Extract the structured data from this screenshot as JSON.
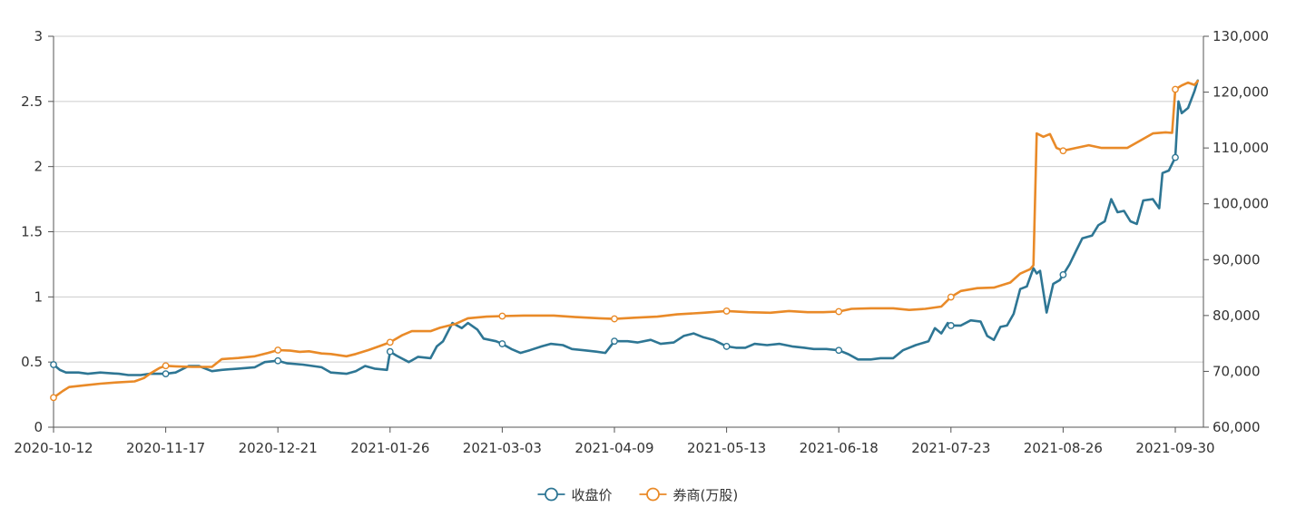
{
  "chart_data": {
    "type": "line",
    "title": "",
    "x_ticks": [
      "2020-10-12",
      "2020-11-17",
      "2020-12-21",
      "2021-01-26",
      "2021-03-03",
      "2021-04-09",
      "2021-05-13",
      "2021-06-18",
      "2021-07-23",
      "2021-08-26",
      "2021-09-30"
    ],
    "x_range": [
      "2020-10-12",
      "2021-10-02"
    ],
    "y_left": {
      "ylim": [
        0,
        3
      ],
      "ticks": [
        "0",
        "0.5",
        "1",
        "1.5",
        "2",
        "2.5",
        "3"
      ]
    },
    "y_right": {
      "ylim": [
        60000,
        130000
      ],
      "ticks": [
        "60,000",
        "70,000",
        "80,000",
        "90,000",
        "100,000",
        "110,000",
        "120,000",
        "130,000"
      ]
    },
    "grid": true,
    "legend_position": "bottom-center",
    "series": [
      {
        "name": "收盘价",
        "axis": "left",
        "color": "#2E7694",
        "points": [
          [
            "2020-10-12",
            0.48
          ],
          [
            "2020-10-14",
            0.44
          ],
          [
            "2020-10-16",
            0.42
          ],
          [
            "2020-10-20",
            0.42
          ],
          [
            "2020-10-23",
            0.41
          ],
          [
            "2020-10-27",
            0.42
          ],
          [
            "2020-11-02",
            0.41
          ],
          [
            "2020-11-05",
            0.4
          ],
          [
            "2020-11-09",
            0.4
          ],
          [
            "2020-11-12",
            0.41
          ],
          [
            "2020-11-17",
            0.41
          ],
          [
            "2020-11-20",
            0.42
          ],
          [
            "2020-11-24",
            0.47
          ],
          [
            "2020-11-27",
            0.47
          ],
          [
            "2020-12-01",
            0.43
          ],
          [
            "2020-12-04",
            0.44
          ],
          [
            "2020-12-09",
            0.45
          ],
          [
            "2020-12-14",
            0.46
          ],
          [
            "2020-12-17",
            0.5
          ],
          [
            "2020-12-21",
            0.51
          ],
          [
            "2020-12-24",
            0.49
          ],
          [
            "2020-12-29",
            0.48
          ],
          [
            "2021-01-04",
            0.46
          ],
          [
            "2021-01-07",
            0.42
          ],
          [
            "2021-01-12",
            0.41
          ],
          [
            "2021-01-15",
            0.43
          ],
          [
            "2021-01-18",
            0.47
          ],
          [
            "2021-01-21",
            0.45
          ],
          [
            "2021-01-25",
            0.44
          ],
          [
            "2021-01-26",
            0.58
          ],
          [
            "2021-01-28",
            0.55
          ],
          [
            "2021-02-01",
            0.5
          ],
          [
            "2021-02-04",
            0.54
          ],
          [
            "2021-02-08",
            0.53
          ],
          [
            "2021-02-10",
            0.62
          ],
          [
            "2021-02-12",
            0.66
          ],
          [
            "2021-02-15",
            0.8
          ],
          [
            "2021-02-18",
            0.76
          ],
          [
            "2021-02-20",
            0.8
          ],
          [
            "2021-02-23",
            0.75
          ],
          [
            "2021-02-25",
            0.68
          ],
          [
            "2021-03-01",
            0.66
          ],
          [
            "2021-03-03",
            0.64
          ],
          [
            "2021-03-06",
            0.6
          ],
          [
            "2021-03-09",
            0.57
          ],
          [
            "2021-03-12",
            0.59
          ],
          [
            "2021-03-16",
            0.62
          ],
          [
            "2021-03-19",
            0.64
          ],
          [
            "2021-03-23",
            0.63
          ],
          [
            "2021-03-26",
            0.6
          ],
          [
            "2021-03-30",
            0.59
          ],
          [
            "2021-04-03",
            0.58
          ],
          [
            "2021-04-06",
            0.57
          ],
          [
            "2021-04-09",
            0.66
          ],
          [
            "2021-04-13",
            0.66
          ],
          [
            "2021-04-16",
            0.65
          ],
          [
            "2021-04-20",
            0.67
          ],
          [
            "2021-04-23",
            0.64
          ],
          [
            "2021-04-27",
            0.65
          ],
          [
            "2021-04-30",
            0.7
          ],
          [
            "2021-05-03",
            0.72
          ],
          [
            "2021-05-06",
            0.69
          ],
          [
            "2021-05-09",
            0.67
          ],
          [
            "2021-05-13",
            0.62
          ],
          [
            "2021-05-16",
            0.61
          ],
          [
            "2021-05-19",
            0.61
          ],
          [
            "2021-05-22",
            0.64
          ],
          [
            "2021-05-26",
            0.63
          ],
          [
            "2021-05-30",
            0.64
          ],
          [
            "2021-06-03",
            0.62
          ],
          [
            "2021-06-07",
            0.61
          ],
          [
            "2021-06-10",
            0.6
          ],
          [
            "2021-06-14",
            0.6
          ],
          [
            "2021-06-18",
            0.59
          ],
          [
            "2021-06-21",
            0.56
          ],
          [
            "2021-06-24",
            0.52
          ],
          [
            "2021-06-28",
            0.52
          ],
          [
            "2021-07-01",
            0.53
          ],
          [
            "2021-07-05",
            0.53
          ],
          [
            "2021-07-08",
            0.59
          ],
          [
            "2021-07-12",
            0.63
          ],
          [
            "2021-07-16",
            0.66
          ],
          [
            "2021-07-18",
            0.76
          ],
          [
            "2021-07-20",
            0.72
          ],
          [
            "2021-07-22",
            0.8
          ],
          [
            "2021-07-23",
            0.78
          ],
          [
            "2021-07-26",
            0.78
          ],
          [
            "2021-07-29",
            0.82
          ],
          [
            "2021-08-01",
            0.81
          ],
          [
            "2021-08-03",
            0.7
          ],
          [
            "2021-08-05",
            0.67
          ],
          [
            "2021-08-07",
            0.77
          ],
          [
            "2021-08-09",
            0.78
          ],
          [
            "2021-08-11",
            0.87
          ],
          [
            "2021-08-13",
            1.06
          ],
          [
            "2021-08-15",
            1.08
          ],
          [
            "2021-08-17",
            1.22
          ],
          [
            "2021-08-18",
            1.18
          ],
          [
            "2021-08-19",
            1.2
          ],
          [
            "2021-08-21",
            0.88
          ],
          [
            "2021-08-23",
            1.1
          ],
          [
            "2021-08-25",
            1.13
          ],
          [
            "2021-08-26",
            1.17
          ],
          [
            "2021-08-28",
            1.25
          ],
          [
            "2021-08-30",
            1.35
          ],
          [
            "2021-09-01",
            1.45
          ],
          [
            "2021-09-04",
            1.47
          ],
          [
            "2021-09-06",
            1.55
          ],
          [
            "2021-09-08",
            1.58
          ],
          [
            "2021-09-10",
            1.75
          ],
          [
            "2021-09-12",
            1.65
          ],
          [
            "2021-09-14",
            1.66
          ],
          [
            "2021-09-16",
            1.58
          ],
          [
            "2021-09-18",
            1.56
          ],
          [
            "2021-09-20",
            1.74
          ],
          [
            "2021-09-23",
            1.75
          ],
          [
            "2021-09-25",
            1.68
          ],
          [
            "2021-09-26",
            1.95
          ],
          [
            "2021-09-28",
            1.97
          ],
          [
            "2021-09-30",
            2.07
          ],
          [
            "2021-10-01",
            2.5
          ],
          [
            "2021-10-02",
            2.41
          ],
          [
            "2021-10-04",
            2.45
          ],
          [
            "2021-10-06",
            2.58
          ],
          [
            "2021-10-07",
            2.66
          ]
        ]
      },
      {
        "name": "券商(万股)",
        "axis": "right",
        "color": "#E98A28",
        "points": [
          [
            "2020-10-12",
            65300
          ],
          [
            "2020-10-15",
            66500
          ],
          [
            "2020-10-17",
            67200
          ],
          [
            "2020-10-22",
            67500
          ],
          [
            "2020-10-27",
            67800
          ],
          [
            "2020-11-01",
            68000
          ],
          [
            "2020-11-07",
            68200
          ],
          [
            "2020-11-10",
            68800
          ],
          [
            "2020-11-12",
            69600
          ],
          [
            "2020-11-15",
            70600
          ],
          [
            "2020-11-17",
            71000
          ],
          [
            "2020-11-20",
            70900
          ],
          [
            "2020-11-25",
            70800
          ],
          [
            "2020-12-01",
            70800
          ],
          [
            "2020-12-04",
            72200
          ],
          [
            "2020-12-09",
            72400
          ],
          [
            "2020-12-14",
            72700
          ],
          [
            "2020-12-18",
            73300
          ],
          [
            "2020-12-21",
            73800
          ],
          [
            "2020-12-25",
            73700
          ],
          [
            "2020-12-28",
            73500
          ],
          [
            "2020-12-31",
            73600
          ],
          [
            "2021-01-04",
            73200
          ],
          [
            "2021-01-07",
            73100
          ],
          [
            "2021-01-12",
            72700
          ],
          [
            "2021-01-15",
            73100
          ],
          [
            "2021-01-19",
            73800
          ],
          [
            "2021-01-23",
            74600
          ],
          [
            "2021-01-26",
            75200
          ],
          [
            "2021-01-30",
            76500
          ],
          [
            "2021-02-02",
            77200
          ],
          [
            "2021-02-05",
            77200
          ],
          [
            "2021-02-08",
            77200
          ],
          [
            "2021-02-11",
            77800
          ],
          [
            "2021-02-16",
            78500
          ],
          [
            "2021-02-20",
            79500
          ],
          [
            "2021-02-26",
            79800
          ],
          [
            "2021-03-03",
            79900
          ],
          [
            "2021-03-10",
            80000
          ],
          [
            "2021-03-20",
            80000
          ],
          [
            "2021-03-28",
            79700
          ],
          [
            "2021-04-04",
            79500
          ],
          [
            "2021-04-09",
            79400
          ],
          [
            "2021-04-15",
            79600
          ],
          [
            "2021-04-22",
            79800
          ],
          [
            "2021-04-28",
            80200
          ],
          [
            "2021-05-06",
            80500
          ],
          [
            "2021-05-13",
            80800
          ],
          [
            "2021-05-20",
            80600
          ],
          [
            "2021-05-27",
            80500
          ],
          [
            "2021-06-02",
            80800
          ],
          [
            "2021-06-08",
            80600
          ],
          [
            "2021-06-13",
            80600
          ],
          [
            "2021-06-18",
            80700
          ],
          [
            "2021-06-22",
            81200
          ],
          [
            "2021-06-28",
            81300
          ],
          [
            "2021-07-05",
            81300
          ],
          [
            "2021-07-10",
            81000
          ],
          [
            "2021-07-15",
            81200
          ],
          [
            "2021-07-20",
            81600
          ],
          [
            "2021-07-23",
            83300
          ],
          [
            "2021-07-26",
            84400
          ],
          [
            "2021-07-31",
            84900
          ],
          [
            "2021-08-05",
            85000
          ],
          [
            "2021-08-10",
            85900
          ],
          [
            "2021-08-13",
            87500
          ],
          [
            "2021-08-16",
            88300
          ],
          [
            "2021-08-17",
            89000
          ],
          [
            "2021-08-18",
            112600
          ],
          [
            "2021-08-20",
            112000
          ],
          [
            "2021-08-22",
            112500
          ],
          [
            "2021-08-24",
            110000
          ],
          [
            "2021-08-26",
            109500
          ],
          [
            "2021-08-30",
            110000
          ],
          [
            "2021-09-03",
            110500
          ],
          [
            "2021-09-07",
            110000
          ],
          [
            "2021-09-11",
            110000
          ],
          [
            "2021-09-15",
            110000
          ],
          [
            "2021-09-19",
            111300
          ],
          [
            "2021-09-23",
            112600
          ],
          [
            "2021-09-27",
            112800
          ],
          [
            "2021-09-29",
            112700
          ],
          [
            "2021-09-30",
            120500
          ],
          [
            "2021-10-02",
            121200
          ],
          [
            "2021-10-04",
            121700
          ],
          [
            "2021-10-06",
            121300
          ],
          [
            "2021-10-07",
            122000
          ]
        ]
      }
    ],
    "marker_dates": [
      "2020-10-12",
      "2020-11-17",
      "2020-12-21",
      "2021-01-26",
      "2021-03-03",
      "2021-04-09",
      "2021-05-13",
      "2021-06-18",
      "2021-07-23",
      "2021-08-26",
      "2021-09-30"
    ]
  }
}
